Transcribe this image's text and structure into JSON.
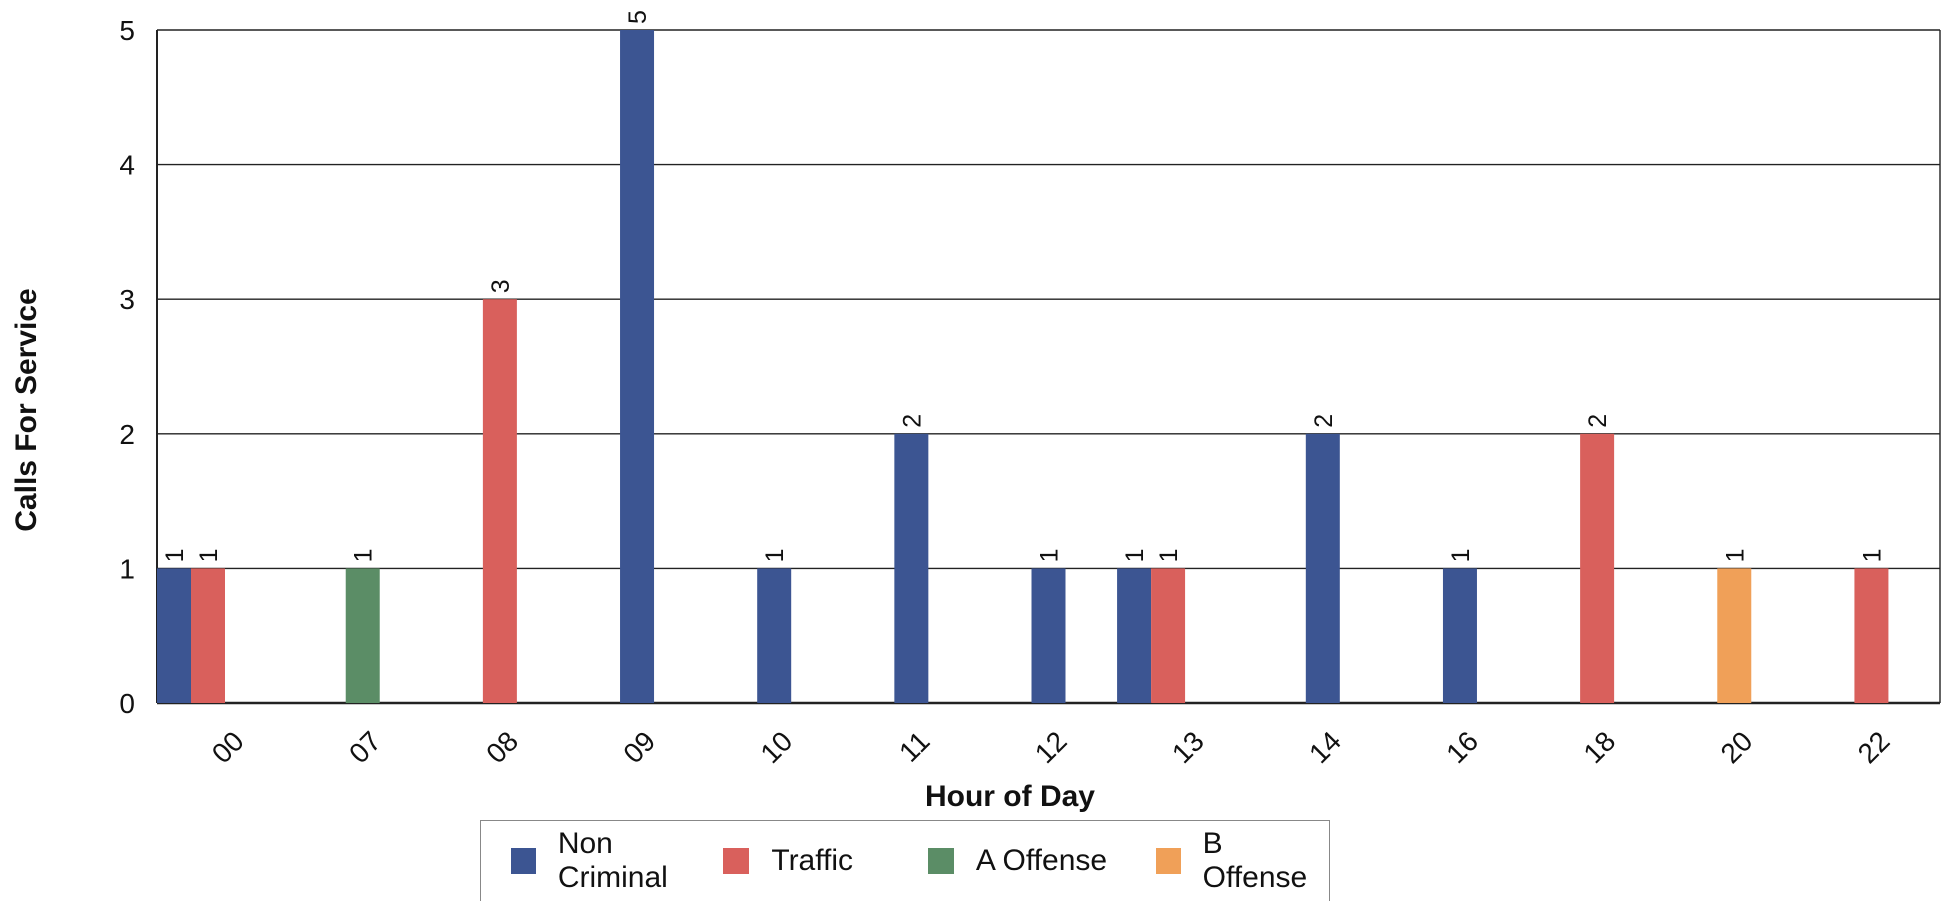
{
  "chart_data": {
    "type": "bar",
    "title": "",
    "xlabel": "Hour of Day",
    "ylabel": "Calls For Service",
    "ylim": [
      0,
      5
    ],
    "yticks": [
      "0",
      "1",
      "2",
      "3",
      "4",
      "5"
    ],
    "grid": true,
    "legend_position": "bottom",
    "categories": [
      "00",
      "07",
      "08",
      "09",
      "10",
      "11",
      "12",
      "13",
      "14",
      "16",
      "18",
      "20",
      "22"
    ],
    "series": [
      {
        "name": "Non Criminal",
        "color": "#3c5592",
        "values": [
          1,
          0,
          0,
          5,
          1,
          2,
          1,
          1,
          2,
          1,
          0,
          0,
          0
        ]
      },
      {
        "name": "Traffic",
        "color": "#d9605c",
        "values": [
          1,
          0,
          3,
          0,
          0,
          0,
          0,
          1,
          0,
          0,
          2,
          0,
          1
        ]
      },
      {
        "name": "A Offense",
        "color": "#5b8d66",
        "values": [
          0,
          1,
          0,
          0,
          0,
          0,
          0,
          0,
          0,
          0,
          0,
          0,
          0
        ]
      },
      {
        "name": "B Offense",
        "color": "#f0a058",
        "values": [
          0,
          0,
          0,
          0,
          0,
          0,
          0,
          0,
          0,
          0,
          0,
          1,
          0
        ]
      }
    ]
  }
}
